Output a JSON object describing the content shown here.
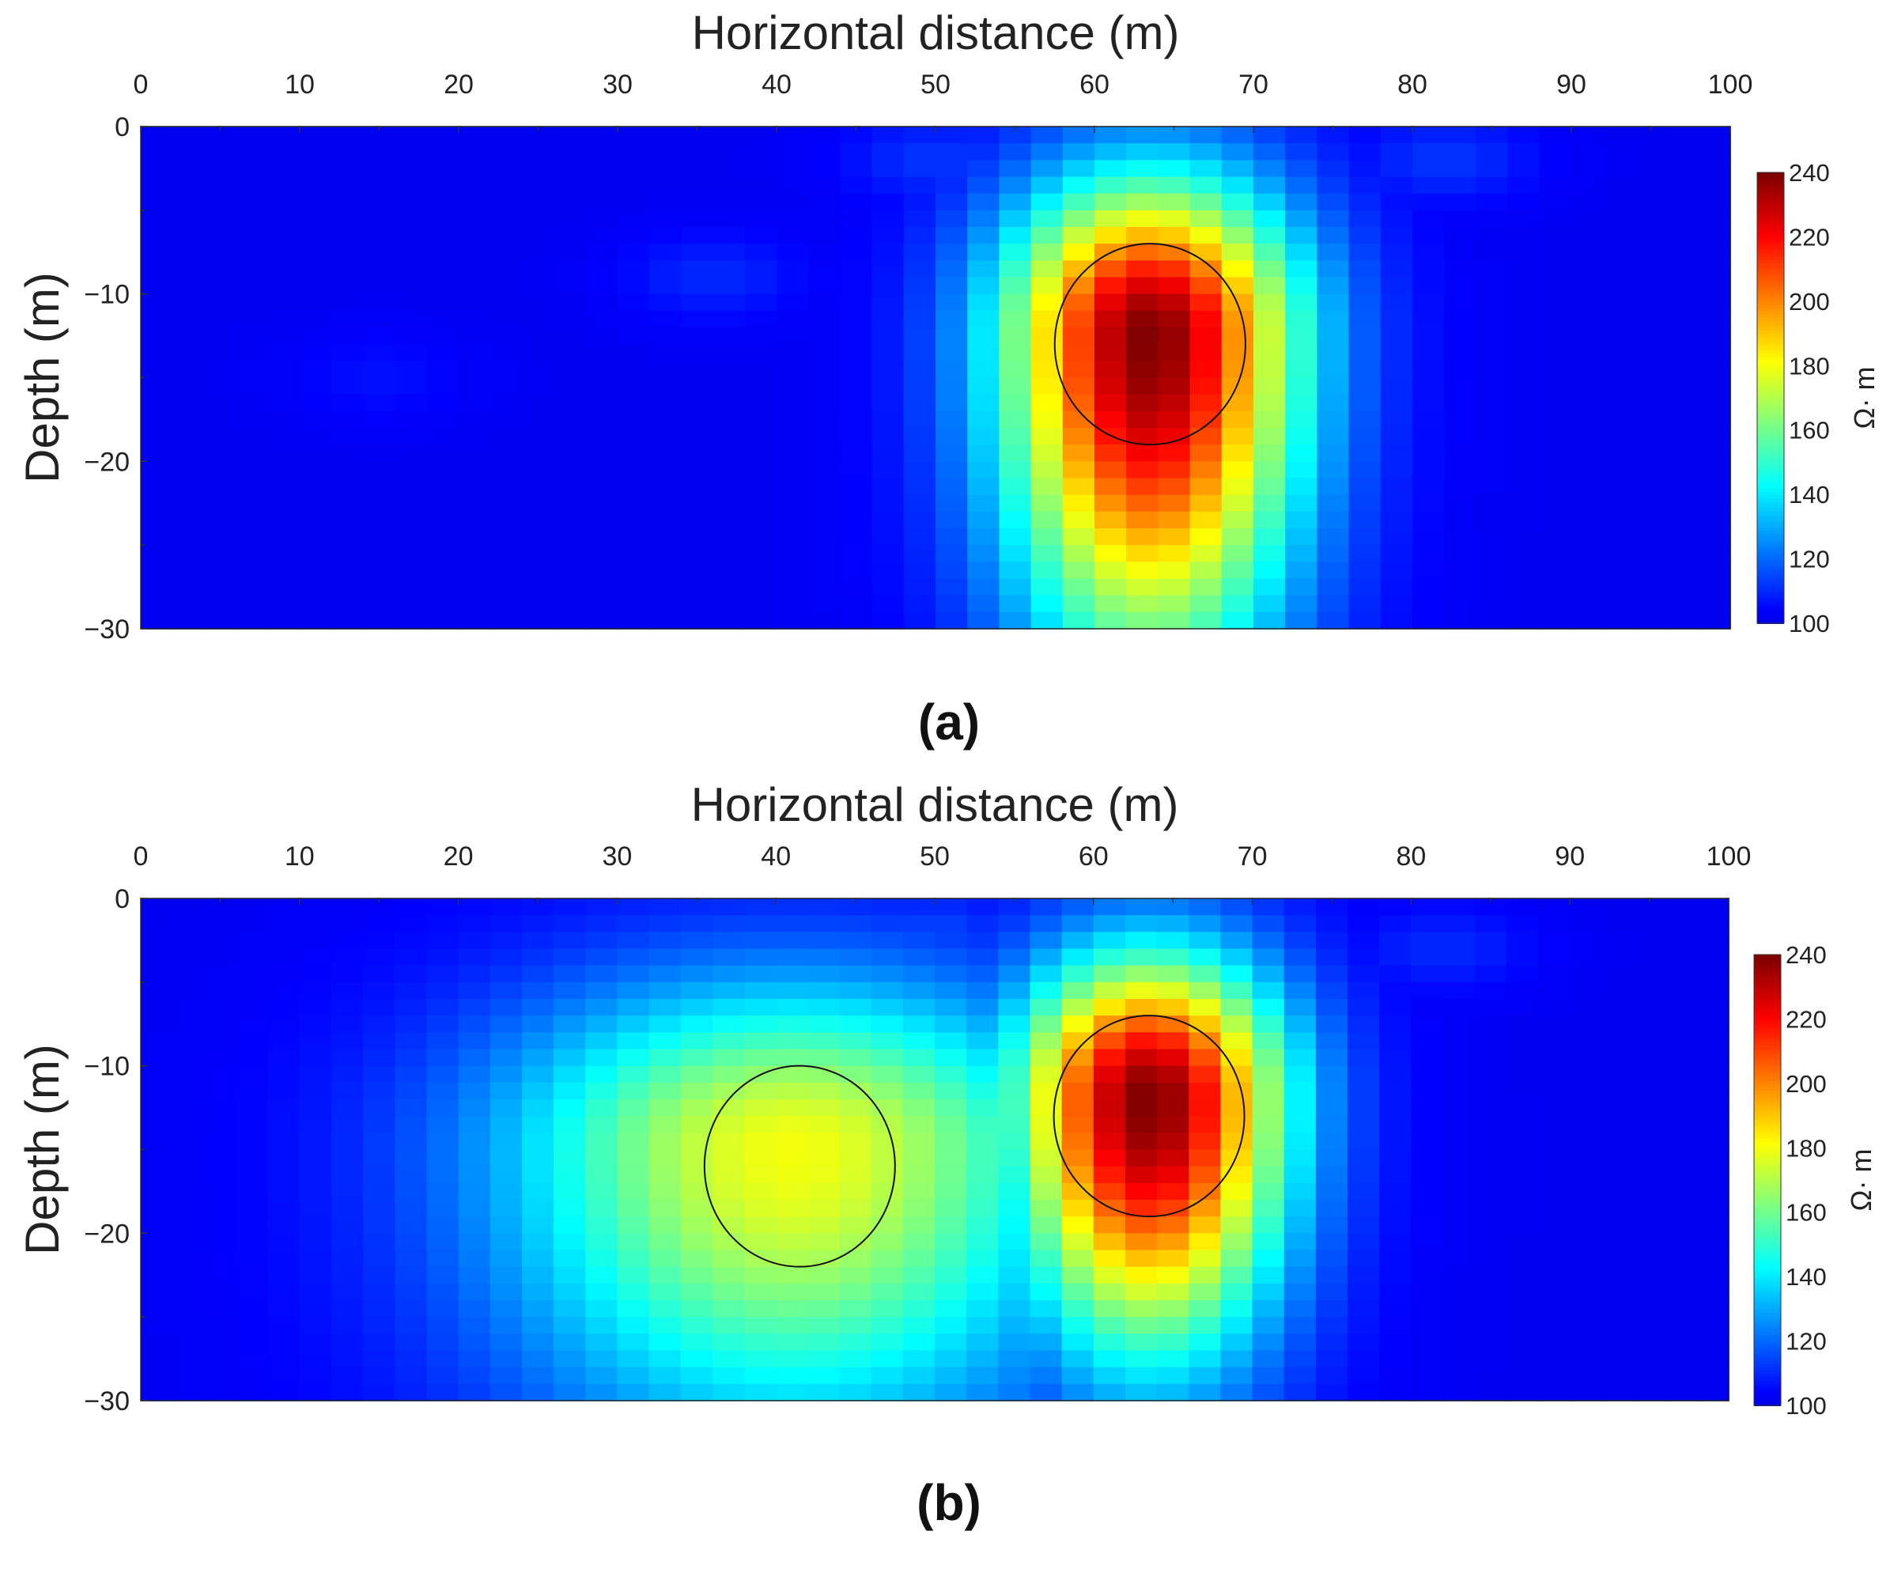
{
  "chart_data": [
    {
      "type": "heatmap",
      "panel_label": "(a)",
      "xlabel": "Horizontal distance (m)",
      "ylabel": "Depth (m)",
      "xlim": [
        0,
        100
      ],
      "ylim": [
        -30,
        0
      ],
      "x_ticks": [
        0,
        10,
        20,
        30,
        40,
        50,
        60,
        70,
        80,
        90,
        100
      ],
      "y_ticks": [
        0,
        -10,
        -20,
        -30
      ],
      "x_axis_position": "top",
      "colorbar": {
        "label": "Ω· m",
        "min": 100,
        "max": 240,
        "ticks": [
          100,
          120,
          140,
          160,
          180,
          200,
          220,
          240
        ],
        "colormap": "jet"
      },
      "cell_size": {
        "dx": 2,
        "dz": 1
      },
      "background_value": 102,
      "anomalies": [
        {
          "center_x": 63.5,
          "center_depth": -12.5,
          "peak_value": 240,
          "sigma_x": 6.5,
          "sigma_z": 6.5,
          "extends_down": 14
        }
      ],
      "outlined_bodies": [
        {
          "center_x": 63.5,
          "center_depth": -13,
          "radius": 6
        }
      ],
      "near_surface_noise": [
        {
          "x": 36,
          "depth": -9,
          "value": 110
        },
        {
          "x": 50,
          "depth": -2,
          "value": 112
        },
        {
          "x": 60,
          "depth": -1,
          "value": 110
        },
        {
          "x": 82,
          "depth": -2,
          "value": 112
        },
        {
          "x": 15,
          "depth": -15,
          "value": 106
        }
      ]
    },
    {
      "type": "heatmap",
      "panel_label": "(b)",
      "xlabel": "Horizontal distance (m)",
      "ylabel": "Depth (m)",
      "xlim": [
        0,
        100
      ],
      "ylim": [
        -30,
        0
      ],
      "x_ticks": [
        0,
        10,
        20,
        30,
        40,
        50,
        60,
        70,
        80,
        90,
        100
      ],
      "y_ticks": [
        0,
        -10,
        -20,
        -30
      ],
      "x_axis_position": "top",
      "colorbar": {
        "label": "Ω· m",
        "min": 100,
        "max": 240,
        "ticks": [
          100,
          120,
          140,
          160,
          180,
          200,
          220,
          240
        ],
        "colormap": "jet"
      },
      "cell_size": {
        "dx": 2,
        "dz": 1
      },
      "background_value": 102,
      "anomalies": [
        {
          "center_x": 63.5,
          "center_depth": -12,
          "peak_value": 240,
          "sigma_x": 6,
          "sigma_z": 6,
          "extends_down": 10
        },
        {
          "center_x": 41,
          "center_depth": -15,
          "peak_value": 180,
          "sigma_x": 13,
          "sigma_z": 7,
          "extends_down": 10
        }
      ],
      "outlined_bodies": [
        {
          "center_x": 41.5,
          "center_depth": -16,
          "radius": 6
        },
        {
          "center_x": 63.5,
          "center_depth": -13,
          "radius": 6
        }
      ],
      "near_surface_noise": [
        {
          "x": 30,
          "depth": -3,
          "value": 112
        },
        {
          "x": 50,
          "depth": -2,
          "value": 114
        },
        {
          "x": 66,
          "depth": -1,
          "value": 110
        },
        {
          "x": 82,
          "depth": -3,
          "value": 110
        }
      ]
    }
  ]
}
